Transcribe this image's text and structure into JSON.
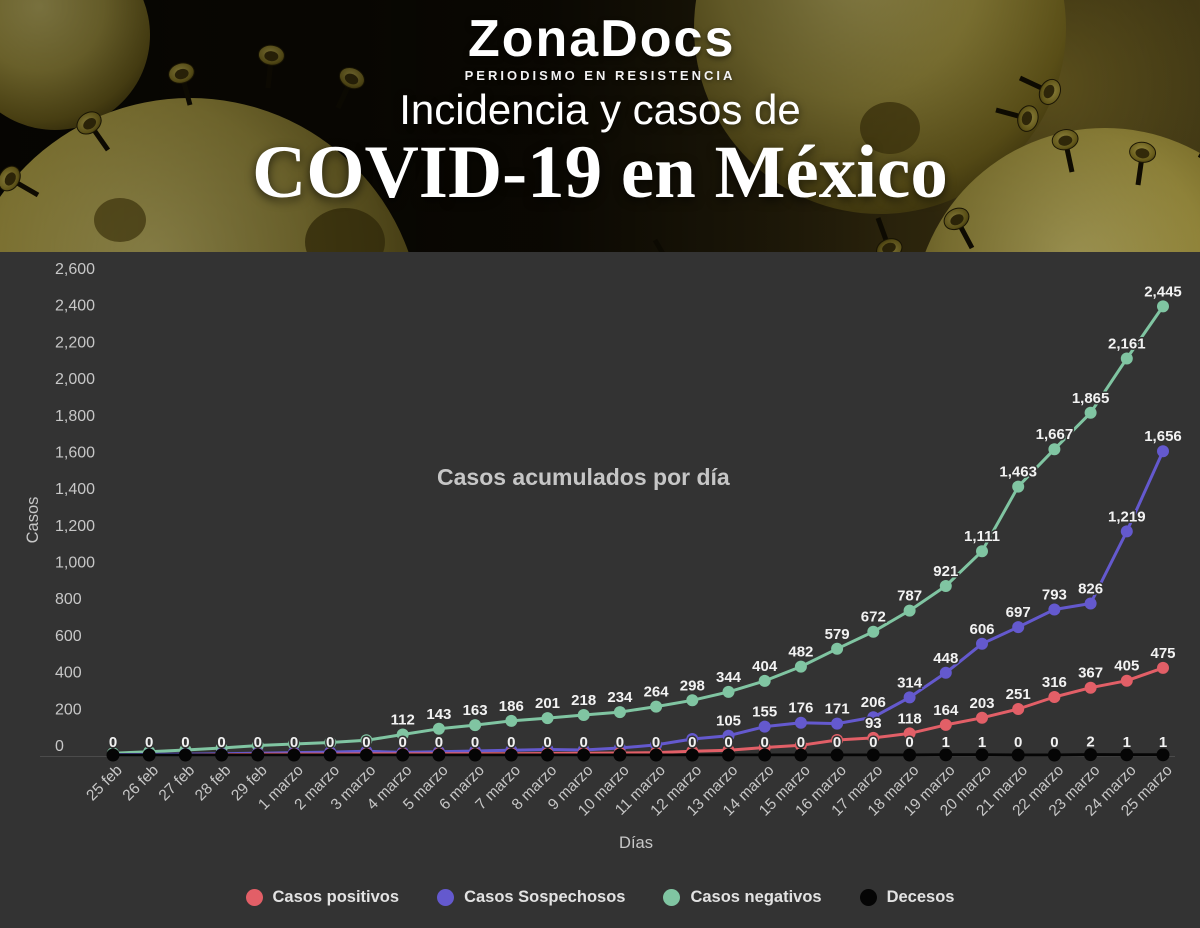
{
  "header": {
    "logo": "ZonaDocs",
    "tagline": "PERIODISMO EN RESISTENCIA",
    "subtitle": "Incidencia y casos de",
    "title": "COVID-19 en México"
  },
  "colors": {
    "background": "#333333",
    "positivos": "#e25f67",
    "sospechosos": "#6459ce",
    "negativos": "#80c5a2",
    "decesos": "#050505"
  },
  "chart_data": {
    "type": "line",
    "title": "Casos acumulados por día",
    "xlabel": "Días",
    "ylabel": "Casos",
    "ylim": [
      0,
      2600
    ],
    "ytick_step": 200,
    "grid": false,
    "legend_position": "bottom",
    "categories": [
      "25 feb",
      "26 feb",
      "27 feb",
      "28 feb",
      "29 feb",
      "1 marzo",
      "2 marzo",
      "3 marzo",
      "4 marzo",
      "5 marzo",
      "6 marzo",
      "7 marzo",
      "8 marzo",
      "9 marzo",
      "10 marzo",
      "11 marzo",
      "12 marzo",
      "13 marzo",
      "14 marzo",
      "15 marzo",
      "16 marzo",
      "17 marzo",
      "18 marzo",
      "19 marzo",
      "20 marzo",
      "21 marzo",
      "22 marzo",
      "23 marzo",
      "24 marzo",
      "25 marzo"
    ],
    "series": [
      {
        "name": "Casos positivos",
        "color": "#e25f67",
        "labels_from": 21,
        "values": [
          0,
          0,
          0,
          2,
          4,
          5,
          5,
          6,
          6,
          7,
          7,
          7,
          8,
          9,
          11,
          13,
          20,
          26,
          41,
          53,
          82,
          93,
          118,
          164,
          203,
          251,
          316,
          367,
          405,
          475
        ]
      },
      {
        "name": "Casos Sospechosos",
        "color": "#6459ce",
        "labels_from": 17,
        "values": [
          2,
          3,
          5,
          7,
          10,
          13,
          16,
          20,
          14,
          18,
          22,
          26,
          30,
          27,
          38,
          55,
          87,
          105,
          155,
          176,
          171,
          206,
          314,
          448,
          606,
          697,
          793,
          826,
          1219,
          1656
        ]
      },
      {
        "name": "Casos negativos",
        "color": "#80c5a2",
        "labels_from": 8,
        "values": [
          10,
          18,
          27,
          38,
          52,
          60,
          68,
          80,
          112,
          143,
          163,
          186,
          201,
          218,
          234,
          264,
          298,
          344,
          404,
          482,
          579,
          672,
          787,
          921,
          1111,
          1463,
          1667,
          1865,
          2161,
          2445
        ]
      },
      {
        "name": "Decesos",
        "color": "#050505",
        "labels_from": 0,
        "values": [
          0,
          0,
          0,
          0,
          0,
          0,
          0,
          0,
          0,
          0,
          0,
          0,
          0,
          0,
          0,
          0,
          0,
          0,
          0,
          0,
          0,
          0,
          0,
          1,
          1,
          0,
          0,
          2,
          1,
          1
        ]
      }
    ]
  }
}
